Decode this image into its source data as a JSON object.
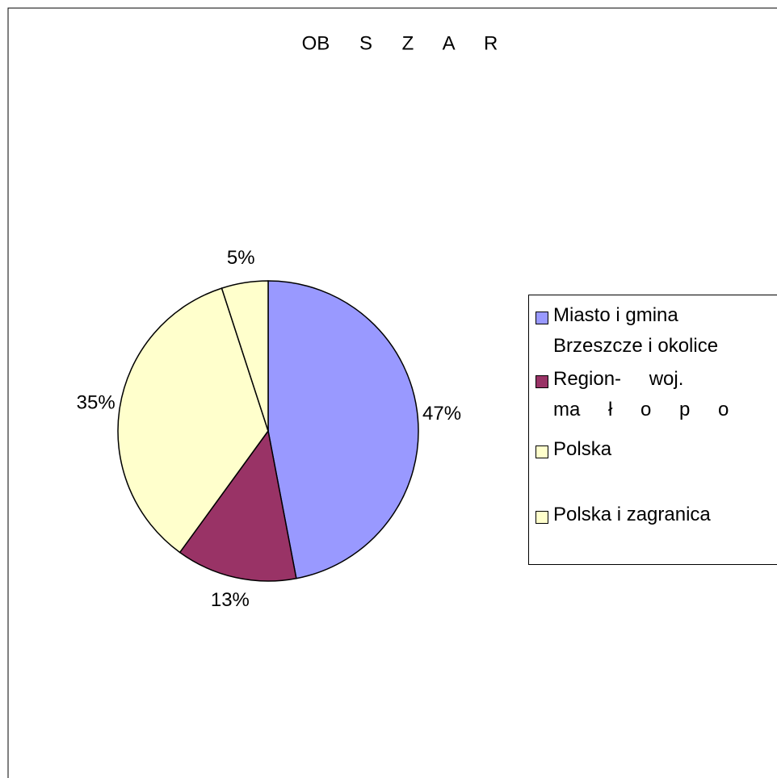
{
  "chart_data": {
    "type": "pie",
    "title": "OB S Z A R",
    "categories": [
      "Miasto i gmina Brzeszcze i okolice",
      "Region- woj. ma ł o p o",
      "Polska",
      "Polska i zagranica"
    ],
    "values": [
      47,
      13,
      35,
      5
    ],
    "value_labels": [
      "47%",
      "13%",
      "35%",
      "5%"
    ],
    "colors": [
      "#9999ff",
      "#993366",
      "#ffffcc",
      "#ffffcc"
    ],
    "legend": "right"
  }
}
